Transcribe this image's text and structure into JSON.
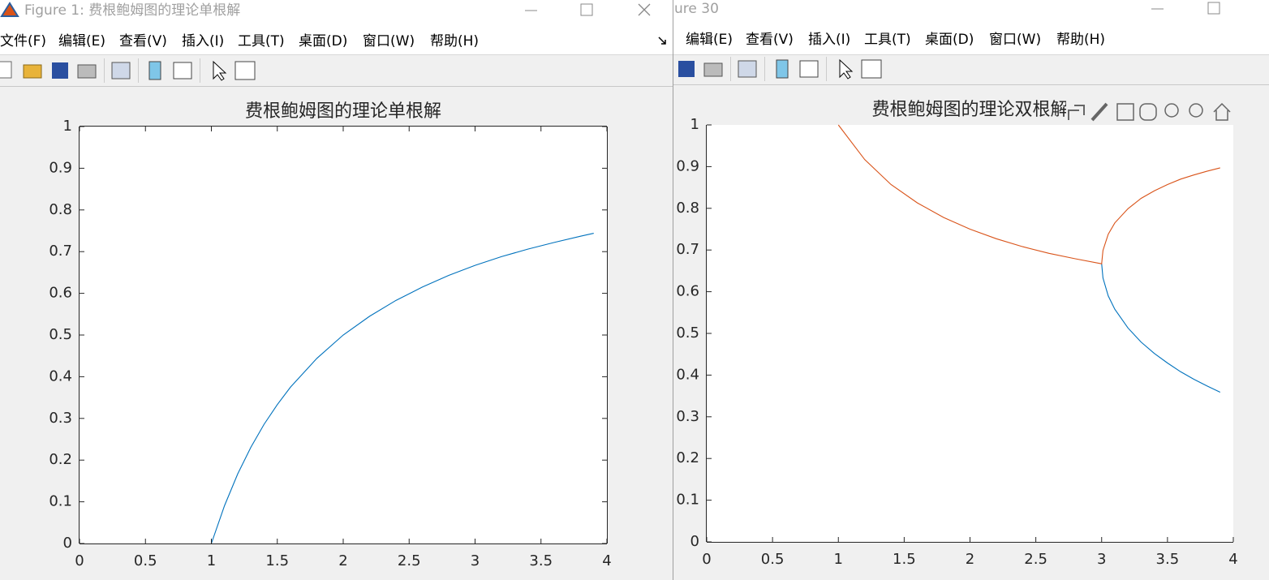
{
  "windows": [
    {
      "title": "Figure 1: 费根鲍姆图的理论单根解",
      "menu": [
        "文件(F)",
        "编辑(E)",
        "查看(V)",
        "插入(I)",
        "工具(T)",
        "桌面(D)",
        "窗口(W)",
        "帮助(H)"
      ]
    },
    {
      "title": "ure 30",
      "menu": [
        "编辑(E)",
        "查看(V)",
        "插入(I)",
        "工具(T)",
        "桌面(D)",
        "窗口(W)",
        "帮助(H)"
      ]
    }
  ],
  "chart_data": [
    {
      "type": "line",
      "title": "费根鲍姆图的理论单根解",
      "x": [
        1,
        1.1,
        1.2,
        1.3,
        1.4,
        1.5,
        1.6,
        1.8,
        2,
        2.2,
        2.4,
        2.6,
        2.8,
        3,
        3.2,
        3.4,
        3.6,
        3.8,
        3.9
      ],
      "series": [
        {
          "color": "#0072bd",
          "values": [
            0,
            0.091,
            0.167,
            0.231,
            0.286,
            0.333,
            0.375,
            0.444,
            0.5,
            0.545,
            0.583,
            0.615,
            0.643,
            0.667,
            0.688,
            0.706,
            0.722,
            0.737,
            0.744
          ]
        }
      ],
      "xlim": [
        0,
        4
      ],
      "xticks": [
        0,
        0.5,
        1,
        1.5,
        2,
        2.5,
        3,
        3.5,
        4
      ],
      "ylim": [
        0,
        1
      ],
      "yticks": [
        0,
        0.1,
        0.2,
        0.3,
        0.4,
        0.5,
        0.6,
        0.7,
        0.8,
        0.9,
        1
      ],
      "box": true
    },
    {
      "type": "line",
      "title": "费根鲍姆图的理论双根解",
      "x": [
        1,
        1.2,
        1.4,
        1.6,
        1.8,
        2,
        2.2,
        2.4,
        2.6,
        2.8,
        3,
        3.01,
        3.05,
        3.1,
        3.2,
        3.3,
        3.4,
        3.5,
        3.6,
        3.7,
        3.8,
        3.9
      ],
      "series": [
        {
          "color": "#0072bd",
          "values": [
            null,
            null,
            null,
            null,
            null,
            null,
            null,
            null,
            null,
            null,
            0.667,
            0.633,
            0.59,
            0.558,
            0.513,
            0.479,
            0.452,
            0.429,
            0.408,
            0.39,
            0.374,
            0.359
          ]
        },
        {
          "color": "#d95319",
          "values": [
            1,
            0.917,
            0.857,
            0.813,
            0.778,
            0.75,
            0.727,
            0.708,
            0.692,
            0.679,
            0.667,
            0.699,
            0.738,
            0.765,
            0.799,
            0.824,
            0.842,
            0.857,
            0.87,
            0.88,
            0.889,
            0.897
          ]
        }
      ],
      "xlim": [
        0,
        4
      ],
      "xticks": [
        0,
        0.5,
        1,
        1.5,
        2,
        2.5,
        3,
        3.5,
        4
      ],
      "ylim": [
        0,
        1
      ],
      "yticks": [
        0,
        0.1,
        0.2,
        0.3,
        0.4,
        0.5,
        0.6,
        0.7,
        0.8,
        0.9,
        1
      ],
      "box": false
    }
  ]
}
